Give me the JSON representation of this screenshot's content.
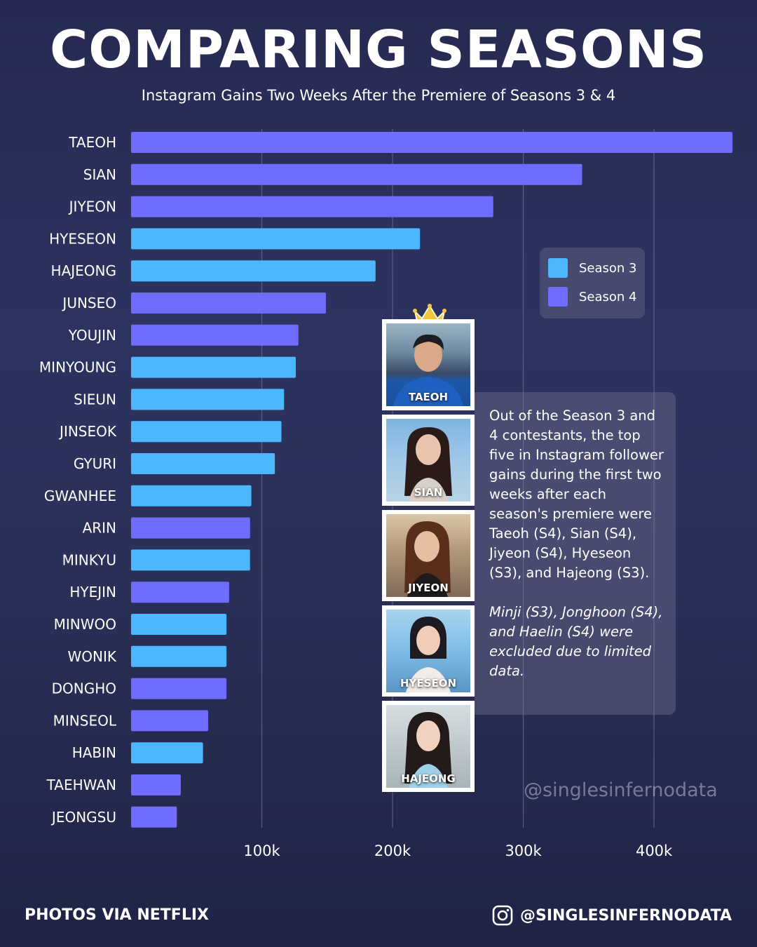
{
  "title": "COMPARING SEASONS",
  "subtitle": "Instagram Gains Two Weeks After the Premiere of Seasons 3 & 4",
  "colors": {
    "season3": "#4cb7ff",
    "season4": "#6f6cff",
    "gridline": "#5a5f86",
    "background": "#2a2f5a"
  },
  "legend": [
    {
      "label": "Season 3",
      "color": "#4cb7ff"
    },
    {
      "label": "Season 4",
      "color": "#6f6cff"
    }
  ],
  "chart_data": {
    "type": "bar",
    "orientation": "horizontal",
    "categories": [
      "TAEOH",
      "SIAN",
      "JIYEON",
      "HYESEON",
      "HAJEONG",
      "JUNSEO",
      "YOUJIN",
      "MINYOUNG",
      "SIEUN",
      "JINSEOK",
      "GYURI",
      "GWANHEE",
      "ARIN",
      "MINKYU",
      "HYEJIN",
      "MINWOO",
      "WONIK",
      "DONGHO",
      "MINSEOL",
      "HABIN",
      "TAEHWAN",
      "JEONGSU"
    ],
    "values": [
      460000,
      345000,
      277000,
      221000,
      187000,
      149000,
      128000,
      126000,
      117000,
      115000,
      110000,
      92000,
      91000,
      91000,
      75000,
      73000,
      73000,
      73000,
      59000,
      55000,
      38000,
      35000
    ],
    "season": [
      4,
      4,
      4,
      3,
      3,
      4,
      4,
      3,
      3,
      3,
      3,
      3,
      4,
      3,
      4,
      3,
      3,
      4,
      4,
      3,
      4,
      4
    ],
    "xticks": [
      "100k",
      "200k",
      "300k",
      "400k"
    ],
    "xtick_values": [
      100000,
      200000,
      300000,
      400000
    ],
    "xlim": [
      0,
      460000
    ],
    "grid": "vertical",
    "legend_position": "top-right"
  },
  "photos": [
    {
      "name": "TAEOH",
      "crown": true
    },
    {
      "name": "SIAN",
      "crown": false
    },
    {
      "name": "JIYEON",
      "crown": false
    },
    {
      "name": "HYESEON",
      "crown": false
    },
    {
      "name": "HAJEONG",
      "crown": false
    }
  ],
  "note": {
    "text": "Out of the Season 3 and 4 contestants, the top five in Instagram follower gains during the first two weeks after each season's premiere were Taeoh (S4), Sian (S4), Jiyeon (S4), Hyeseon (S3), and Hajeong (S3).",
    "italic": "Minji (S3), Jonghoon (S4), and Haelin (S4) were excluded due to limited data."
  },
  "watermark": "@singlesinfernodata",
  "footer": {
    "credit": "PHOTOS VIA NETFLIX",
    "handle": "@SINGLESINFERNODATA"
  }
}
